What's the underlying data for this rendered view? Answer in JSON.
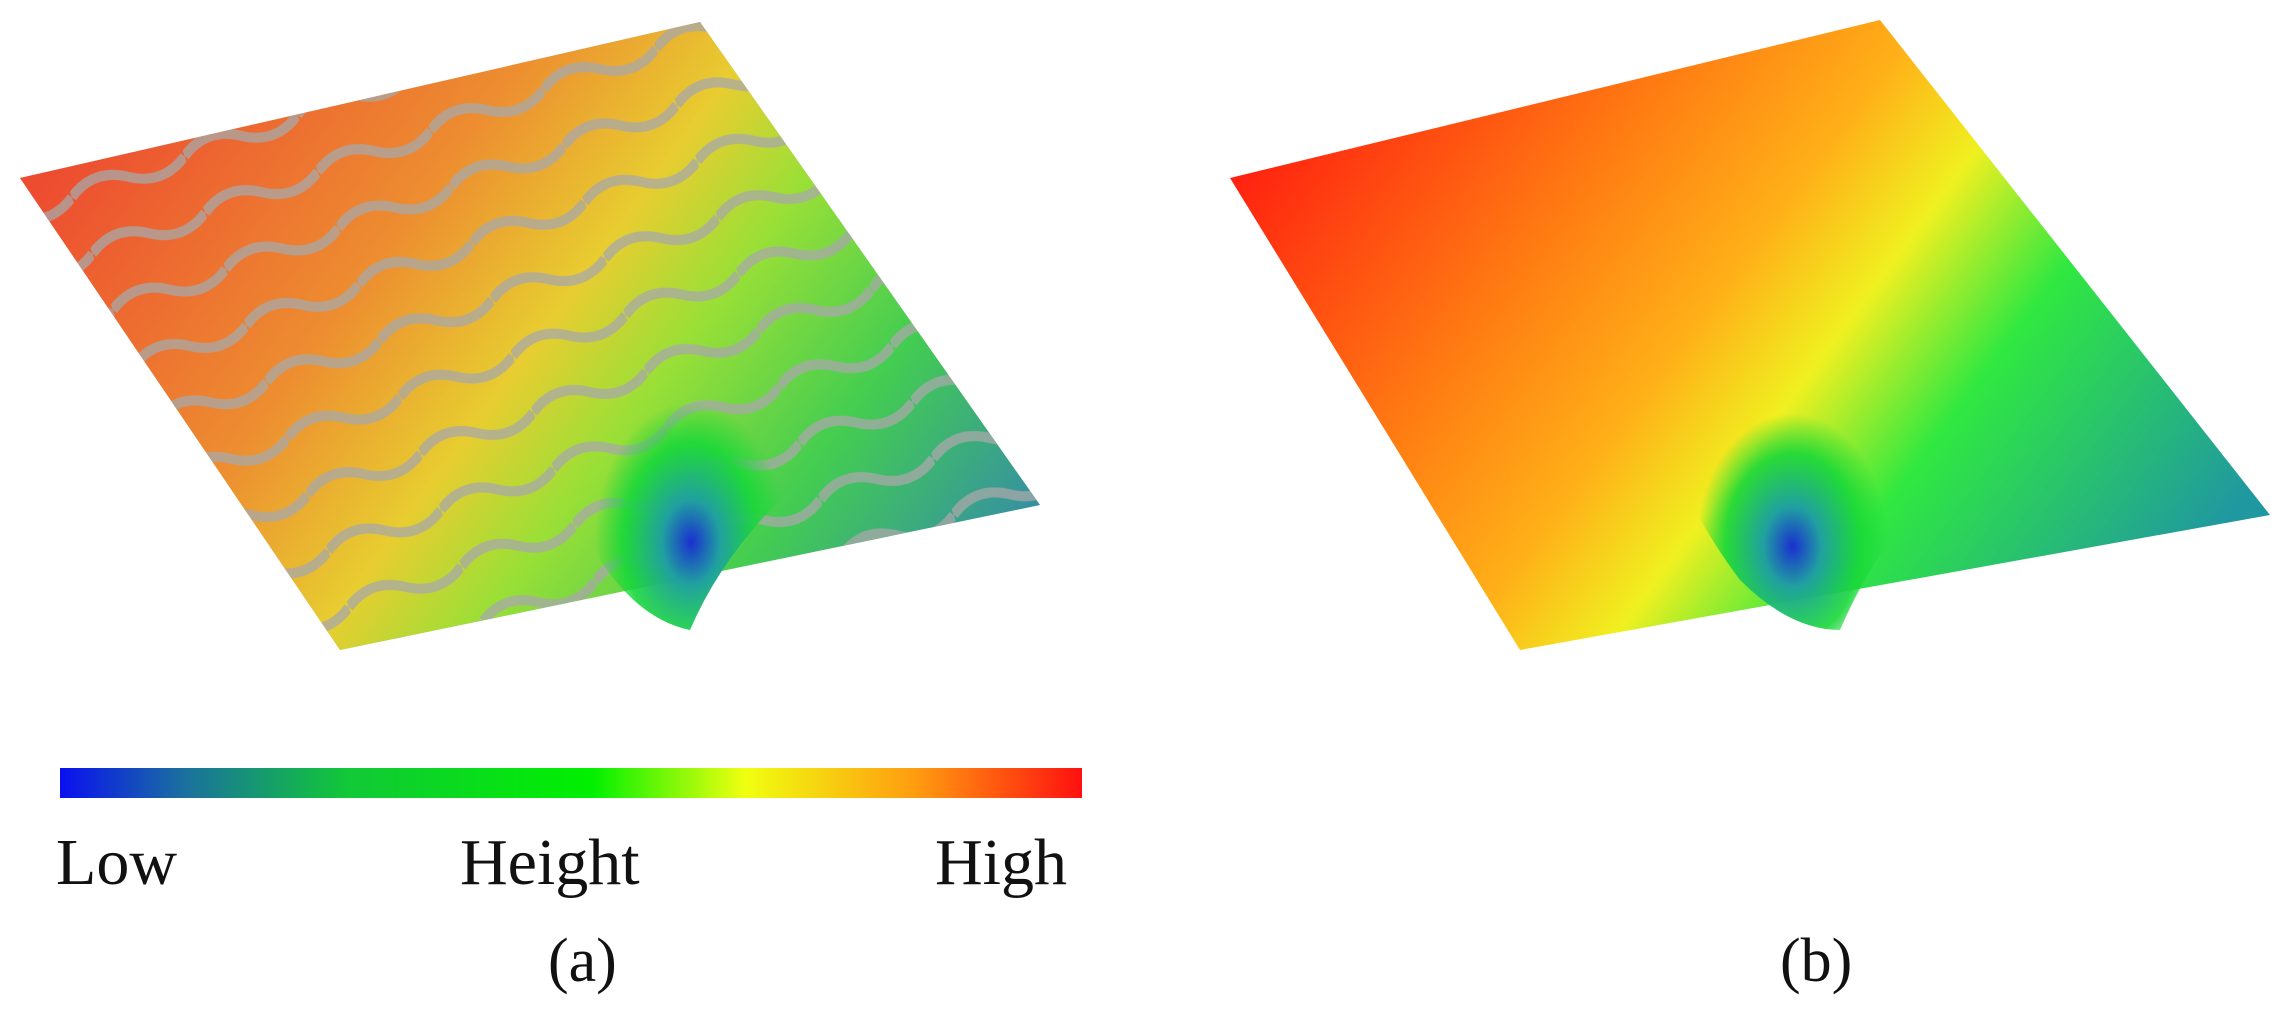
{
  "colorbar": {
    "low_label": "Low",
    "mid_label": "Height",
    "high_label": "High",
    "stops": [
      {
        "offset": 0.0,
        "color": "#0a10f0"
      },
      {
        "offset": 0.12,
        "color": "#1a6fa0"
      },
      {
        "offset": 0.28,
        "color": "#12c838"
      },
      {
        "offset": 0.52,
        "color": "#00f000"
      },
      {
        "offset": 0.67,
        "color": "#f0ff10"
      },
      {
        "offset": 0.84,
        "color": "#ff9a10"
      },
      {
        "offset": 1.0,
        "color": "#ff1010"
      }
    ]
  },
  "panels": [
    {
      "id": "a",
      "caption": "(a)",
      "description_colors": {
        "high": "#ff3a10",
        "mid": "#ffd010",
        "low": "#1a30d0",
        "surface": "#9a9a9a"
      }
    },
    {
      "id": "b",
      "caption": "(b)",
      "description_colors": {
        "high": "#ff2010",
        "mid": "#ffe010",
        "low": "#1a30d0",
        "surface": "#a8a8a8"
      }
    }
  ]
}
